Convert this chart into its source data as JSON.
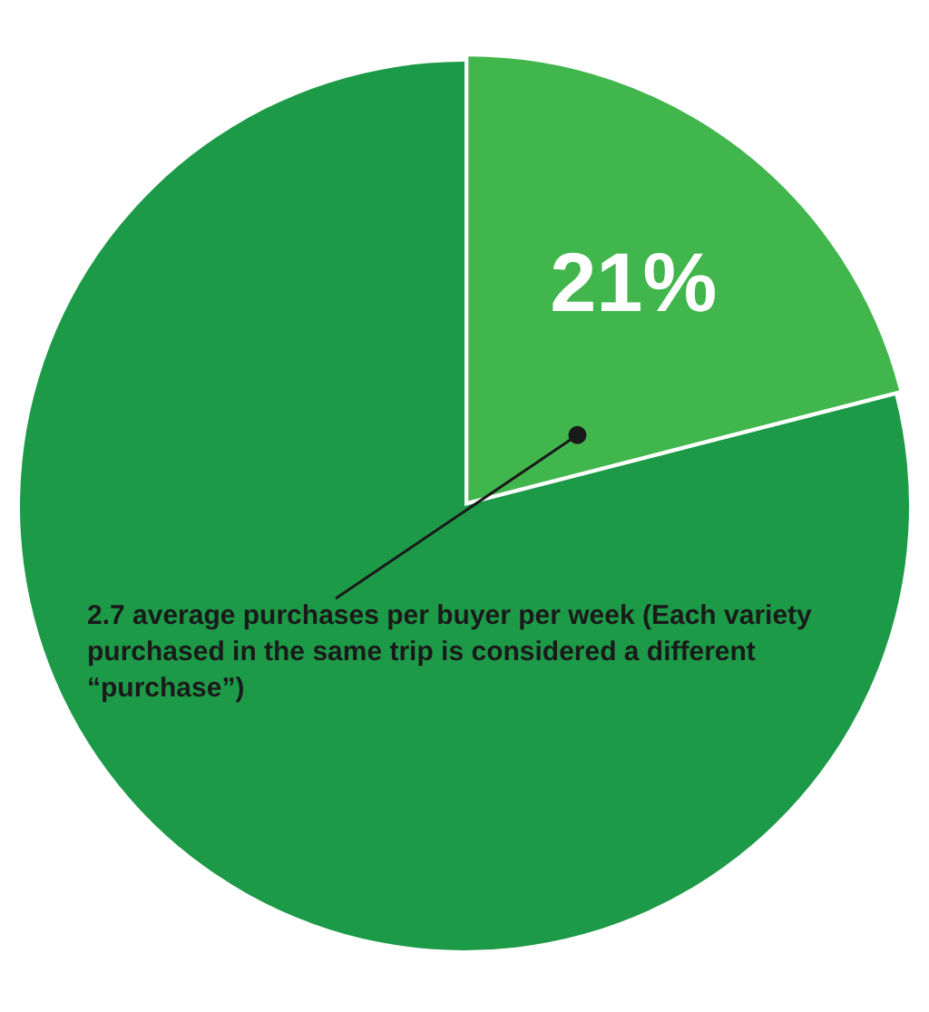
{
  "chart_data": {
    "type": "pie",
    "categories": [
      null,
      null
    ],
    "values": [
      21,
      79
    ],
    "colors": [
      "#41b64c",
      "#1d9a48"
    ],
    "value_labels": [
      "21%",
      null
    ],
    "annotations": [
      "2.7 average purchases per buyer per week (Each variety purchased in the same trip is considered a different “purchase”)"
    ]
  }
}
